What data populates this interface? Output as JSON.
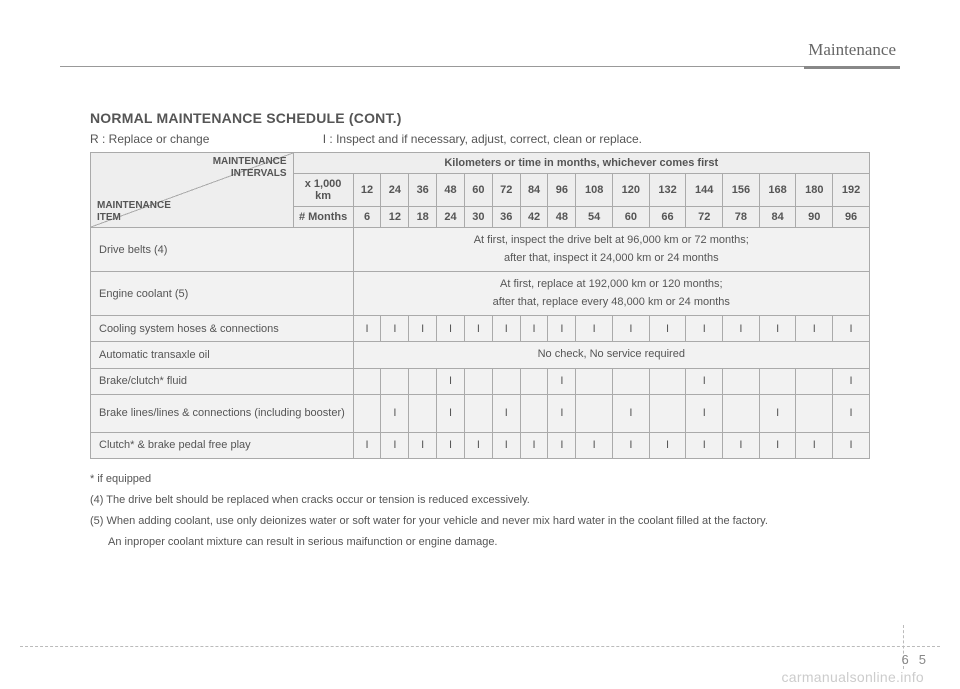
{
  "sectionLabel": "Maintenance",
  "heading": "NORMAL MAINTENANCE SCHEDULE (CONT.)",
  "legend": {
    "r": "R : Replace or change",
    "i": "I : Inspect and if necessary, adjust, correct, clean or replace."
  },
  "corner": {
    "top": "MAINTENANCE INTERVALS",
    "bottom": "MAINTENANCE ITEM"
  },
  "tableHeader": {
    "bannerTitle": "Kilometers or time in months, whichever comes first",
    "kmLabel": "x 1,000 km",
    "monthsLabel": "# Months",
    "km": [
      "12",
      "24",
      "36",
      "48",
      "60",
      "72",
      "84",
      "96",
      "108",
      "120",
      "132",
      "144",
      "156",
      "168",
      "180",
      "192"
    ],
    "months": [
      "6",
      "12",
      "18",
      "24",
      "30",
      "36",
      "42",
      "48",
      "54",
      "60",
      "66",
      "72",
      "78",
      "84",
      "90",
      "96"
    ]
  },
  "rows": [
    {
      "item": "Drive belts (4)",
      "span": true,
      "text": "At first, inspect the drive belt at 96,000 km or 72 months;<br>after that, inspect it 24,000 km or 24 months"
    },
    {
      "item": "Engine coolant (5)",
      "span": true,
      "text": "At first, replace at 192,000 km or 120 months;<br>after that, replace every 48,000 km or 24 months"
    },
    {
      "item": "Cooling system hoses & connections",
      "cells": [
        "I",
        "I",
        "I",
        "I",
        "I",
        "I",
        "I",
        "I",
        "I",
        "I",
        "I",
        "I",
        "I",
        "I",
        "I",
        "I"
      ]
    },
    {
      "item": "Automatic transaxle oil",
      "span": true,
      "text": "No check, No service required"
    },
    {
      "item": "Brake/clutch* fluid",
      "cells": [
        "",
        "",
        "",
        "I",
        "",
        "",
        "",
        "I",
        "",
        "",
        "",
        "I",
        "",
        "",
        "",
        "I"
      ]
    },
    {
      "item": "Brake lines/lines & connections (including booster)",
      "tall": true,
      "cells": [
        "",
        "I",
        "",
        "I",
        "",
        "I",
        "",
        "I",
        "",
        "I",
        "",
        "I",
        "",
        "I",
        "",
        "I"
      ]
    },
    {
      "item": "Clutch* & brake pedal free play",
      "cells": [
        "I",
        "I",
        "I",
        "I",
        "I",
        "I",
        "I",
        "I",
        "I",
        "I",
        "I",
        "I",
        "I",
        "I",
        "I",
        "I"
      ]
    }
  ],
  "notes": [
    "* if equipped",
    "(4) The drive belt should be replaced when cracks occur or tension is reduced excessively.",
    "(5) When adding coolant, use only deionizes water or soft water for your vehicle and never mix hard water in the coolant filled at the factory.",
    "An inproper coolant mixture can result in serious maifunction or engine damage."
  ],
  "pageNumber": {
    "chapter": "6",
    "page": "5"
  },
  "watermark": "carmanualsonline.info",
  "colors": {
    "text": "#555555",
    "border": "#aaaaaa",
    "cellBg": "#f2f2f2",
    "headerBg": "#eeeeee",
    "watermark": "#cccccc"
  },
  "typography": {
    "heading_fontsize": 14,
    "body_fontsize": 11,
    "legend_fontsize": 12
  }
}
